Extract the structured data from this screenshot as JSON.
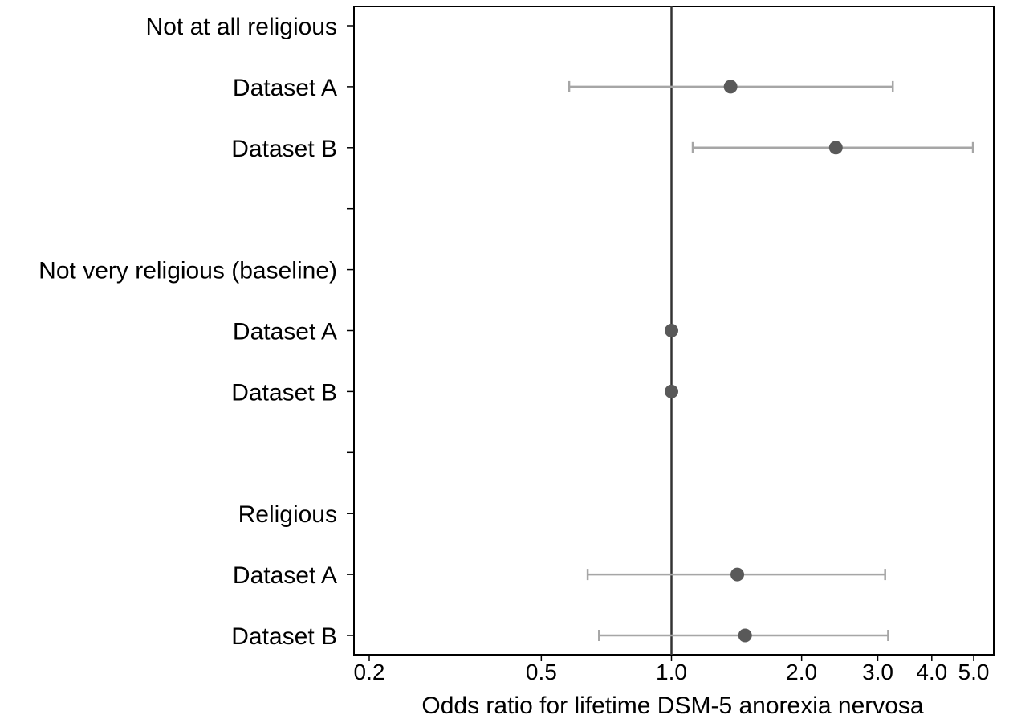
{
  "chart_data": {
    "type": "scatter",
    "subtype": "forest-plot",
    "xlabel": "Odds ratio for lifetime DSM-5 anorexia nervosa",
    "x_scale": "log",
    "xlim": [
      0.2,
      5.0
    ],
    "x_ticks": [
      {
        "value": 0.2,
        "label": "0.2"
      },
      {
        "value": 0.5,
        "label": "0.5"
      },
      {
        "value": 1.0,
        "label": "1.0"
      },
      {
        "value": 2.0,
        "label": "2.0"
      },
      {
        "value": 3.0,
        "label": "3.0"
      },
      {
        "value": 4.0,
        "label": "4.0"
      },
      {
        "value": 5.0,
        "label": "5.0"
      }
    ],
    "reference_line": 1.0,
    "grid": false,
    "rows": [
      {
        "label": "Not at all religious",
        "kind": "header"
      },
      {
        "label": "Dataset A",
        "kind": "estimate",
        "or": 1.37,
        "lo": 0.58,
        "hi": 3.25
      },
      {
        "label": "Dataset B",
        "kind": "estimate",
        "or": 2.4,
        "lo": 1.12,
        "hi": 4.98
      },
      {
        "label": "",
        "kind": "spacer"
      },
      {
        "label": "Not very religious (baseline)",
        "kind": "header"
      },
      {
        "label": "Dataset A",
        "kind": "estimate",
        "or": 1.0
      },
      {
        "label": "Dataset B",
        "kind": "estimate",
        "or": 1.0
      },
      {
        "label": "",
        "kind": "spacer"
      },
      {
        "label": "Religious",
        "kind": "header"
      },
      {
        "label": "Dataset A",
        "kind": "estimate",
        "or": 1.42,
        "lo": 0.64,
        "hi": 3.12
      },
      {
        "label": "Dataset B",
        "kind": "estimate",
        "or": 1.48,
        "lo": 0.68,
        "hi": 3.17
      }
    ],
    "colors": {
      "point": "#595959",
      "ci": "#a6a6a6",
      "reference": "#333333",
      "frame": "#000000"
    }
  }
}
